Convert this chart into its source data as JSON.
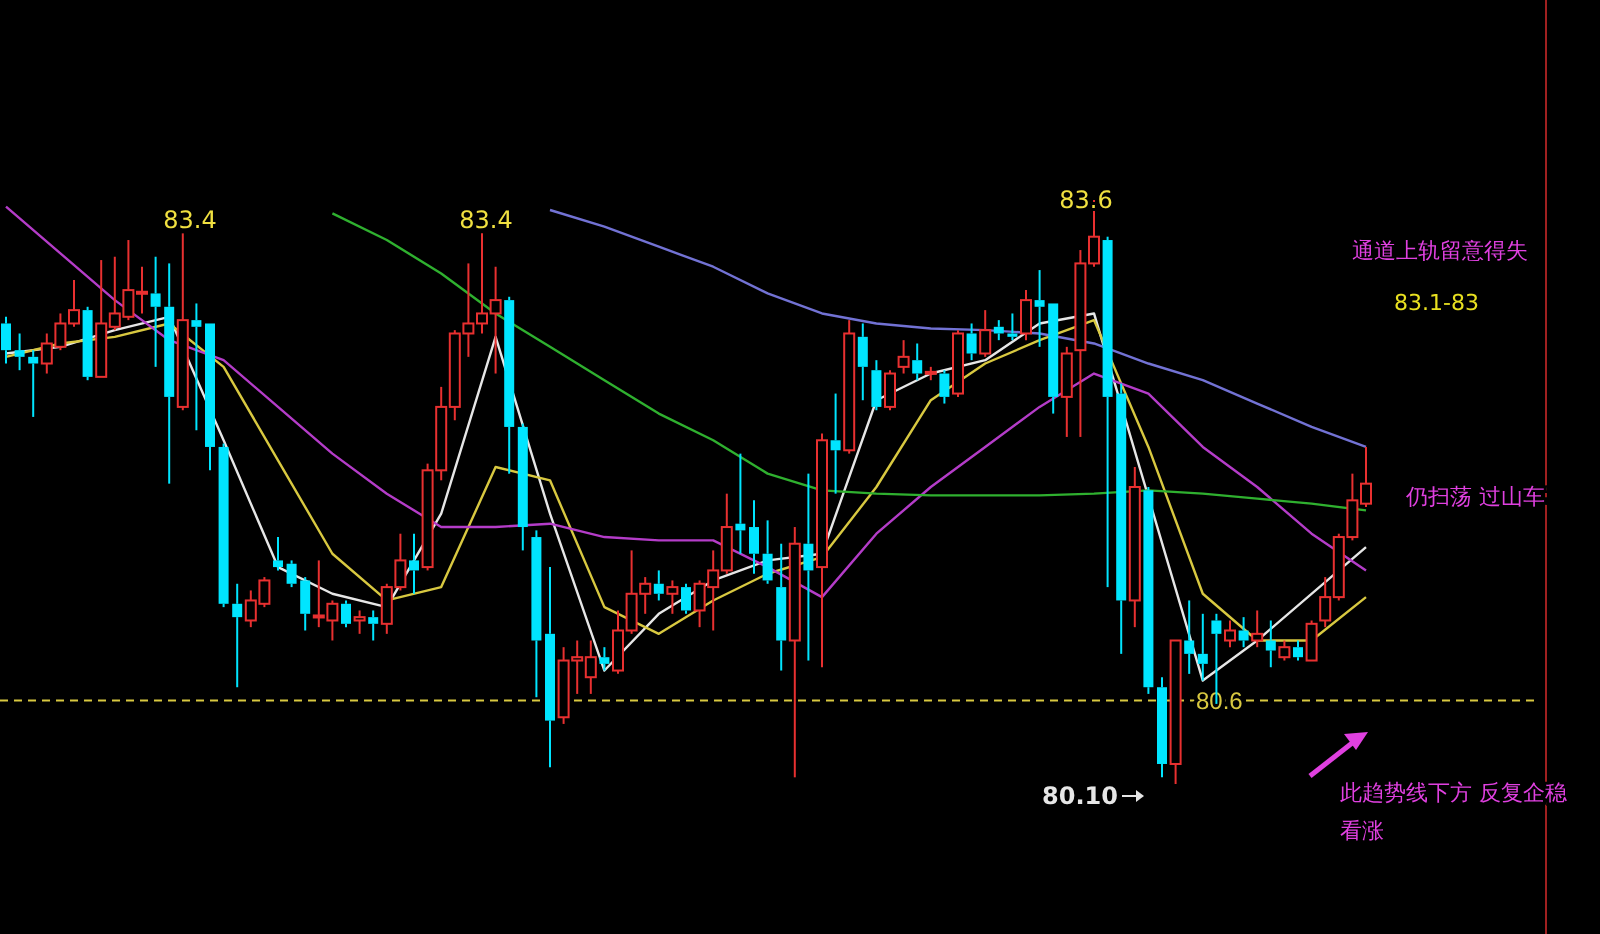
{
  "chart_data": {
    "type": "candlestick",
    "categories": [
      null,
      null,
      null,
      null,
      null,
      null,
      null,
      null,
      null,
      null,
      null,
      null,
      null,
      null,
      null,
      null,
      null,
      null,
      null,
      null,
      null,
      null,
      null,
      null,
      null,
      null,
      null,
      null,
      null,
      null,
      null,
      null,
      null,
      null,
      null,
      null,
      null,
      null,
      null,
      null,
      null,
      null,
      null,
      null,
      null,
      null,
      null,
      null,
      null,
      null,
      null,
      null,
      null,
      null,
      null,
      null,
      null,
      null,
      null,
      null,
      null,
      null,
      null,
      null,
      null,
      null,
      null,
      null,
      null,
      null,
      null,
      null,
      null,
      null,
      null,
      null,
      null,
      null,
      null,
      null,
      null,
      null,
      null,
      null,
      null,
      null,
      null,
      null,
      null,
      null,
      null,
      null,
      null,
      null,
      null,
      null,
      null,
      null,
      null,
      null,
      null
    ],
    "ohlc": [
      [
        82.86,
        82.9,
        82.62,
        82.7
      ],
      [
        82.7,
        82.8,
        82.58,
        82.66
      ],
      [
        82.66,
        82.7,
        82.3,
        82.62
      ],
      [
        82.62,
        82.8,
        82.56,
        82.74
      ],
      [
        82.72,
        82.92,
        82.7,
        82.86
      ],
      [
        82.86,
        83.12,
        82.84,
        82.94
      ],
      [
        82.94,
        82.96,
        82.52,
        82.54
      ],
      [
        82.54,
        83.24,
        82.54,
        82.86
      ],
      [
        82.84,
        83.26,
        82.82,
        82.92
      ],
      [
        82.9,
        83.36,
        82.88,
        83.06
      ],
      [
        83.04,
        83.2,
        82.92,
        83.05
      ],
      [
        83.04,
        83.26,
        82.6,
        82.96
      ],
      [
        82.96,
        83.22,
        81.9,
        82.42
      ],
      [
        82.36,
        83.4,
        82.34,
        82.88
      ],
      [
        82.88,
        82.98,
        82.22,
        82.84
      ],
      [
        82.86,
        82.86,
        81.98,
        82.12
      ],
      [
        82.12,
        82.14,
        81.16,
        81.18
      ],
      [
        81.18,
        81.3,
        80.68,
        81.1
      ],
      [
        81.08,
        81.26,
        81.04,
        81.2
      ],
      [
        81.18,
        81.34,
        81.16,
        81.32
      ],
      [
        81.44,
        81.58,
        81.38,
        81.4
      ],
      [
        81.42,
        81.44,
        81.28,
        81.3
      ],
      [
        81.32,
        81.34,
        81.02,
        81.12
      ],
      [
        81.1,
        81.44,
        81.04,
        81.11
      ],
      [
        81.08,
        81.2,
        80.96,
        81.18
      ],
      [
        81.18,
        81.2,
        81.04,
        81.06
      ],
      [
        81.08,
        81.14,
        81.0,
        81.1
      ],
      [
        81.1,
        81.14,
        80.96,
        81.06
      ],
      [
        81.06,
        81.3,
        81.0,
        81.28
      ],
      [
        81.28,
        81.6,
        81.26,
        81.44
      ],
      [
        81.44,
        81.6,
        81.24,
        81.38
      ],
      [
        81.4,
        82.02,
        81.38,
        81.98
      ],
      [
        81.98,
        82.48,
        81.92,
        82.36
      ],
      [
        82.36,
        82.82,
        82.28,
        82.8
      ],
      [
        82.8,
        83.22,
        82.66,
        82.86
      ],
      [
        82.86,
        83.4,
        82.8,
        82.92
      ],
      [
        82.92,
        83.2,
        82.56,
        83.0
      ],
      [
        83.0,
        83.02,
        81.96,
        82.24
      ],
      [
        82.24,
        82.26,
        81.5,
        81.64
      ],
      [
        81.58,
        81.62,
        80.62,
        80.96
      ],
      [
        81.0,
        81.4,
        80.2,
        80.48
      ],
      [
        80.5,
        80.92,
        80.46,
        80.84
      ],
      [
        80.84,
        80.96,
        80.64,
        80.86
      ],
      [
        80.74,
        80.96,
        80.64,
        80.86
      ],
      [
        80.86,
        80.92,
        80.78,
        80.82
      ],
      [
        80.78,
        81.14,
        80.76,
        81.02
      ],
      [
        81.02,
        81.5,
        81.0,
        81.24
      ],
      [
        81.24,
        81.34,
        81.12,
        81.3
      ],
      [
        81.3,
        81.38,
        81.2,
        81.24
      ],
      [
        81.24,
        81.32,
        81.12,
        81.28
      ],
      [
        81.28,
        81.3,
        81.12,
        81.14
      ],
      [
        81.14,
        81.32,
        81.04,
        81.3
      ],
      [
        81.28,
        81.5,
        81.02,
        81.38
      ],
      [
        81.38,
        81.84,
        81.36,
        81.64
      ],
      [
        81.66,
        82.08,
        81.48,
        81.62
      ],
      [
        81.64,
        81.8,
        81.36,
        81.48
      ],
      [
        81.48,
        81.68,
        81.3,
        81.32
      ],
      [
        81.28,
        81.54,
        80.78,
        80.96
      ],
      [
        80.96,
        81.64,
        80.14,
        81.54
      ],
      [
        81.54,
        81.96,
        80.84,
        81.38
      ],
      [
        81.4,
        82.2,
        80.8,
        82.16
      ],
      [
        82.16,
        82.44,
        81.84,
        82.1
      ],
      [
        82.1,
        82.88,
        82.08,
        82.8
      ],
      [
        82.78,
        82.86,
        82.4,
        82.6
      ],
      [
        82.58,
        82.64,
        82.34,
        82.36
      ],
      [
        82.36,
        82.58,
        82.34,
        82.56
      ],
      [
        82.6,
        82.76,
        82.56,
        82.66
      ],
      [
        82.64,
        82.74,
        82.52,
        82.56
      ],
      [
        82.56,
        82.6,
        82.52,
        82.57
      ],
      [
        82.56,
        82.58,
        82.38,
        82.42
      ],
      [
        82.44,
        82.82,
        82.42,
        82.8
      ],
      [
        82.8,
        82.86,
        82.64,
        82.68
      ],
      [
        82.68,
        82.94,
        82.66,
        82.82
      ],
      [
        82.84,
        82.88,
        82.76,
        82.8
      ],
      [
        82.8,
        82.92,
        82.76,
        82.78
      ],
      [
        82.8,
        83.06,
        82.76,
        83.0
      ],
      [
        83.0,
        83.18,
        82.72,
        82.96
      ],
      [
        82.98,
        82.98,
        82.32,
        82.42
      ],
      [
        82.42,
        82.72,
        82.18,
        82.68
      ],
      [
        82.7,
        83.3,
        82.18,
        83.22
      ],
      [
        83.22,
        83.6,
        83.2,
        83.38
      ],
      [
        83.36,
        83.38,
        81.28,
        82.42
      ],
      [
        82.44,
        82.5,
        80.88,
        81.2
      ],
      [
        81.2,
        82.0,
        81.04,
        81.88
      ],
      [
        81.86,
        81.88,
        80.64,
        80.68
      ],
      [
        80.68,
        80.74,
        80.14,
        80.22
      ],
      [
        80.22,
        80.96,
        80.1,
        80.96
      ],
      [
        80.96,
        81.2,
        80.76,
        80.88
      ],
      [
        80.88,
        81.12,
        80.72,
        80.82
      ],
      [
        81.08,
        81.12,
        80.58,
        81.0
      ],
      [
        80.96,
        81.08,
        80.92,
        81.02
      ],
      [
        81.02,
        81.1,
        80.92,
        80.96
      ],
      [
        80.96,
        81.14,
        80.92,
        81.0
      ],
      [
        80.96,
        81.08,
        80.8,
        80.9
      ],
      [
        80.86,
        80.96,
        80.84,
        80.92
      ],
      [
        80.92,
        80.96,
        80.84,
        80.86
      ],
      [
        80.84,
        81.08,
        80.84,
        81.06
      ],
      [
        81.08,
        81.34,
        81.04,
        81.22
      ],
      [
        81.22,
        81.6,
        81.2,
        81.58
      ],
      [
        81.58,
        81.96,
        81.56,
        81.8
      ],
      [
        81.78,
        82.12,
        81.76,
        81.9
      ]
    ],
    "series": [
      {
        "type": "line",
        "color": "#e6e6e6",
        "values": [
          82.68,
          null,
          null,
          null,
          82.72,
          null,
          null,
          null,
          82.82,
          null,
          null,
          null,
          82.9,
          null,
          null,
          null,
          82.16,
          null,
          null,
          null,
          81.4,
          null,
          null,
          null,
          81.24,
          null,
          null,
          null,
          81.16,
          null,
          null,
          null,
          81.72,
          null,
          null,
          null,
          82.78,
          null,
          null,
          null,
          81.72,
          null,
          null,
          null,
          80.78,
          null,
          null,
          null,
          81.12,
          null,
          null,
          null,
          81.32,
          null,
          null,
          null,
          81.44,
          null,
          null,
          null,
          81.48,
          null,
          null,
          null,
          82.4,
          null,
          null,
          null,
          82.56,
          null,
          null,
          null,
          82.64,
          null,
          null,
          null,
          82.86,
          null,
          null,
          null,
          82.92,
          null,
          null,
          null,
          null,
          null,
          null,
          null,
          80.72,
          null,
          null,
          null,
          80.96,
          null,
          null,
          null,
          null,
          null,
          null,
          null,
          81.52
        ]
      },
      {
        "type": "line",
        "color": "#d8c840",
        "values": [
          82.66,
          null,
          null,
          null,
          82.74,
          null,
          null,
          null,
          82.78,
          null,
          null,
          null,
          82.86,
          null,
          null,
          null,
          82.6,
          null,
          null,
          null,
          82.04,
          null,
          null,
          null,
          81.48,
          null,
          null,
          null,
          81.2,
          null,
          null,
          null,
          81.28,
          null,
          null,
          null,
          82.0,
          null,
          null,
          null,
          81.92,
          null,
          null,
          null,
          81.16,
          null,
          null,
          null,
          81.0,
          null,
          null,
          null,
          81.2,
          null,
          null,
          null,
          81.36,
          null,
          null,
          null,
          81.46,
          null,
          null,
          null,
          81.88,
          null,
          null,
          null,
          82.4,
          null,
          null,
          null,
          82.62,
          null,
          null,
          null,
          82.76,
          null,
          null,
          null,
          82.88,
          null,
          null,
          null,
          82.12,
          null,
          null,
          null,
          81.24,
          null,
          null,
          null,
          80.96,
          null,
          null,
          null,
          80.96,
          null,
          null,
          null,
          81.22
        ]
      },
      {
        "type": "line",
        "color": "#b43cc8",
        "values": [
          83.56,
          null,
          null,
          null,
          83.28,
          null,
          null,
          null,
          83.0,
          null,
          null,
          null,
          82.76,
          null,
          null,
          null,
          82.64,
          null,
          null,
          null,
          82.36,
          null,
          null,
          null,
          82.08,
          null,
          null,
          null,
          81.84,
          null,
          null,
          null,
          81.64,
          null,
          null,
          null,
          81.64,
          null,
          null,
          null,
          81.66,
          null,
          null,
          null,
          81.58,
          null,
          null,
          null,
          81.56,
          null,
          null,
          null,
          81.56,
          null,
          null,
          null,
          81.4,
          null,
          null,
          null,
          81.22,
          null,
          null,
          null,
          81.6,
          null,
          null,
          null,
          81.88,
          null,
          null,
          null,
          82.12,
          null,
          null,
          null,
          82.36,
          null,
          null,
          null,
          82.56,
          null,
          null,
          null,
          82.44,
          null,
          null,
          null,
          82.12,
          null,
          null,
          null,
          81.88,
          null,
          null,
          null,
          81.6,
          null,
          null,
          null,
          81.38
        ]
      },
      {
        "type": "line",
        "color": "#2fb02f",
        "values": [
          null,
          null,
          null,
          null,
          null,
          null,
          null,
          null,
          null,
          null,
          null,
          null,
          null,
          null,
          null,
          null,
          null,
          null,
          null,
          null,
          null,
          null,
          null,
          null,
          83.52,
          null,
          null,
          null,
          83.36,
          null,
          null,
          null,
          83.16,
          null,
          null,
          null,
          82.92,
          null,
          null,
          null,
          82.72,
          null,
          null,
          null,
          82.52,
          null,
          null,
          null,
          82.32,
          null,
          null,
          null,
          82.16,
          null,
          null,
          null,
          81.96,
          null,
          null,
          null,
          81.86,
          null,
          null,
          null,
          81.84,
          null,
          null,
          null,
          81.83,
          null,
          null,
          null,
          81.83,
          null,
          null,
          null,
          81.83,
          null,
          null,
          null,
          81.84,
          null,
          null,
          null,
          81.86,
          null,
          null,
          null,
          81.84,
          null,
          null,
          null,
          81.81,
          null,
          null,
          null,
          81.78,
          null,
          null,
          null,
          81.74
        ]
      },
      {
        "type": "line",
        "color": "#7272d4",
        "values": [
          null,
          null,
          null,
          null,
          null,
          null,
          null,
          null,
          null,
          null,
          null,
          null,
          null,
          null,
          null,
          null,
          null,
          null,
          null,
          null,
          null,
          null,
          null,
          null,
          null,
          null,
          null,
          null,
          null,
          null,
          null,
          null,
          null,
          null,
          null,
          null,
          null,
          null,
          null,
          null,
          83.54,
          null,
          null,
          null,
          83.44,
          null,
          null,
          null,
          83.32,
          null,
          null,
          null,
          83.2,
          null,
          null,
          null,
          83.04,
          null,
          null,
          null,
          82.92,
          null,
          null,
          null,
          82.86,
          null,
          null,
          null,
          82.83,
          null,
          null,
          null,
          82.82,
          null,
          null,
          null,
          82.8,
          null,
          null,
          null,
          82.74,
          null,
          null,
          null,
          82.62,
          null,
          null,
          null,
          82.52,
          null,
          null,
          null,
          82.38,
          null,
          null,
          null,
          82.24,
          null,
          null,
          null,
          82.12
        ]
      }
    ],
    "ref_lines": [
      {
        "axis": "y",
        "value": 80.6,
        "label": "80.6",
        "color": "#d8c840",
        "line_style": "dashed"
      }
    ],
    "annotations": [
      "83.4",
      "83.4",
      "83.6",
      "80.10",
      "通道上轨留意得失",
      "83.1-83",
      "仍扫荡 过山车",
      "此趋势线下方 反复企稳看涨"
    ]
  }
}
